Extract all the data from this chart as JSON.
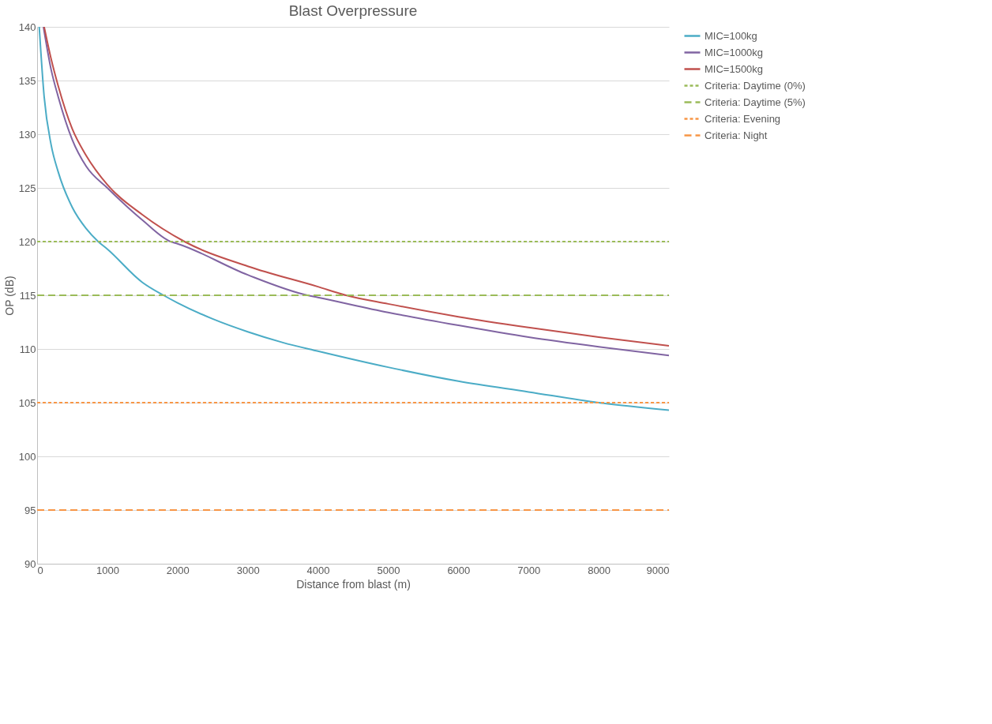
{
  "chart_data": {
    "type": "line",
    "title": "Blast Overpressure",
    "xlabel": "Distance from blast (m)",
    "ylabel": "OP (dB)",
    "xlim": [
      0,
      9000
    ],
    "xticks": [
      0,
      1000,
      2000,
      3000,
      4000,
      5000,
      6000,
      7000,
      8000,
      9000
    ],
    "ylim": [
      90,
      140
    ],
    "yticks": [
      90,
      95,
      100,
      105,
      110,
      115,
      120,
      125,
      130,
      135,
      140
    ],
    "grid": "y",
    "legend": "right",
    "marker": "none",
    "series": [
      {
        "name": "MIC=100kg",
        "color": "#4bacc6",
        "line_style": "solid",
        "x": [
          30,
          100,
          200,
          300,
          500,
          700,
          870,
          1000,
          1500,
          1800,
          2000,
          2500,
          3000,
          3500,
          4000,
          5000,
          6000,
          7000,
          8000,
          9000
        ],
        "values": [
          140,
          133.5,
          129,
          126.5,
          123.2,
          121.2,
          120,
          119.3,
          116.2,
          115,
          114.3,
          112.8,
          111.6,
          110.6,
          109.8,
          108.3,
          107,
          106,
          105,
          104.3
        ]
      },
      {
        "name": "MIC=1000kg",
        "color": "#8064a2",
        "line_style": "solid",
        "x": [
          90,
          200,
          300,
          500,
          700,
          1000,
          1500,
          1900,
          2000,
          3000,
          3850,
          4000,
          5000,
          6000,
          7000,
          8000,
          9000
        ],
        "values": [
          140,
          136,
          133.5,
          129.5,
          127,
          125,
          122,
          120,
          119.8,
          116.9,
          115,
          114.8,
          113.4,
          112.2,
          111.1,
          110.2,
          109.4
        ]
      },
      {
        "name": "MIC=1500kg",
        "color": "#c0504d",
        "line_style": "solid",
        "x": [
          100,
          200,
          300,
          500,
          700,
          1000,
          1500,
          2100,
          3000,
          4000,
          4400,
          5000,
          6000,
          7000,
          8000,
          9000
        ],
        "values": [
          140,
          137,
          134.5,
          130.5,
          128,
          125.3,
          122.5,
          120,
          117.7,
          115.8,
          115,
          114.2,
          113,
          112,
          111.1,
          110.3
        ]
      },
      {
        "name": "Criteria: Daytime (0%)",
        "color": "#9bbb59",
        "line_style": "dotted",
        "x": [
          0,
          9000
        ],
        "values": [
          120,
          120
        ]
      },
      {
        "name": "Criteria: Daytime (5%)",
        "color": "#9bbb59",
        "line_style": "dashed",
        "x": [
          0,
          9000
        ],
        "values": [
          115,
          115
        ]
      },
      {
        "name": "Criteria: Evening",
        "color": "#f79646",
        "line_style": "dotted",
        "x": [
          0,
          9000
        ],
        "values": [
          105,
          105
        ]
      },
      {
        "name": "Criteria: Night",
        "color": "#f79646",
        "line_style": "dashed",
        "x": [
          0,
          9000
        ],
        "values": [
          95,
          95
        ]
      }
    ]
  }
}
